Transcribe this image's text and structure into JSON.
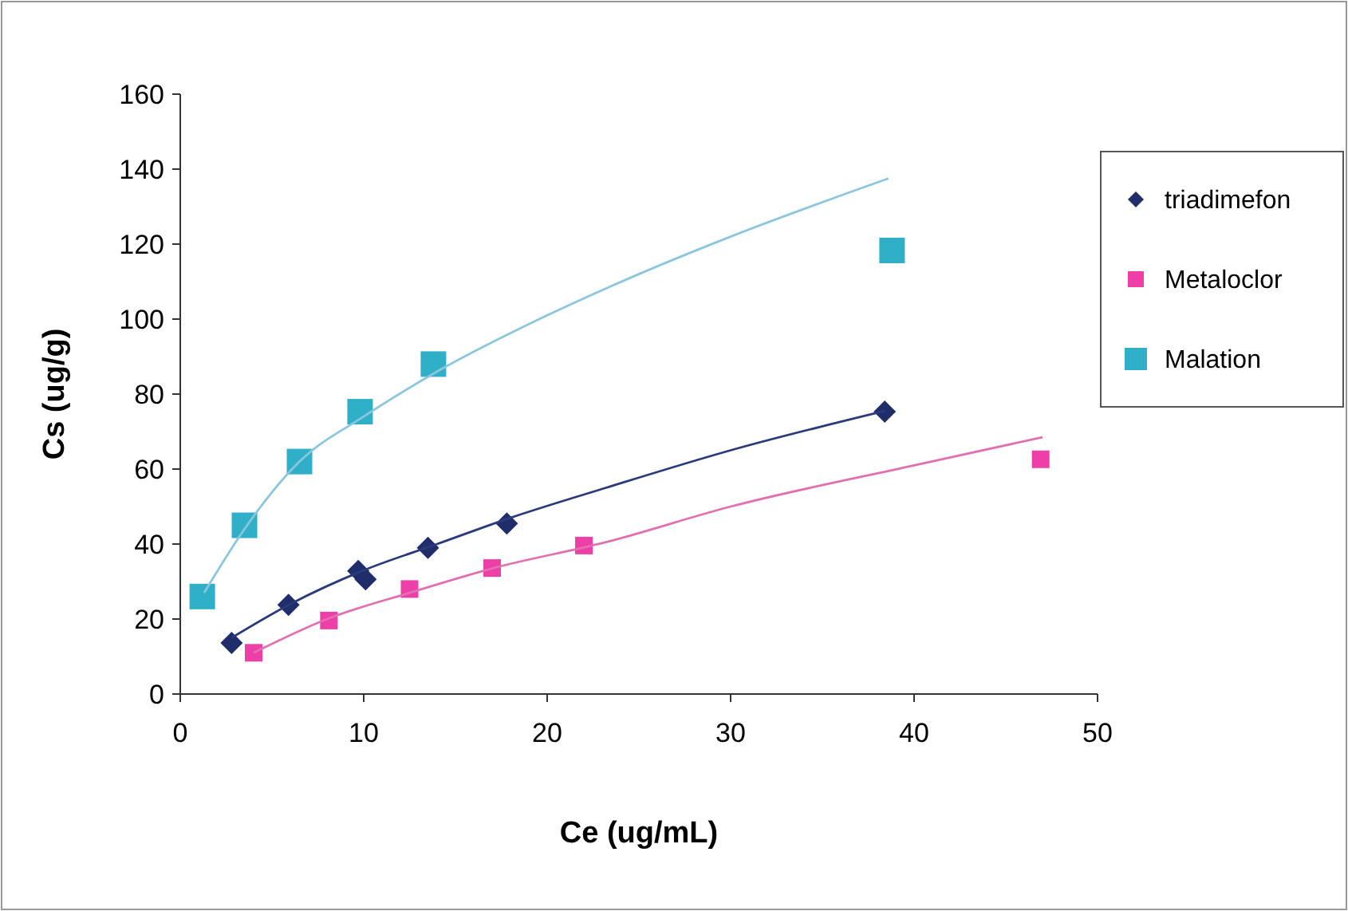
{
  "chart_data": {
    "type": "scatter",
    "xlabel": "Ce (ug/mL)",
    "ylabel": "Cs (ug/g)",
    "xlim": [
      0,
      50
    ],
    "xticks": [
      0,
      10,
      20,
      30,
      40,
      50
    ],
    "ylim": [
      0,
      160
    ],
    "yticks": [
      0,
      20,
      40,
      60,
      80,
      100,
      120,
      140,
      160
    ],
    "grid": false,
    "legend": "right",
    "series": [
      {
        "name": "triadimefon",
        "color": "#1f2d6b",
        "marker": "diamond",
        "x": [
          2.8,
          5.9,
          9.7,
          10.1,
          13.5,
          17.8,
          38.4
        ],
        "values": [
          13.6,
          23.8,
          32.8,
          30.6,
          39,
          45.5,
          75.3
        ]
      },
      {
        "name": "Metaloclor",
        "color": "#ee3fa8",
        "marker": "square",
        "x": [
          4,
          8.1,
          12.5,
          17,
          22,
          46.9
        ],
        "values": [
          11,
          19.6,
          28,
          33.6,
          39.6,
          62.6
        ]
      },
      {
        "name": "Malation",
        "color": "#2fb0c8",
        "marker": "square",
        "x": [
          1.2,
          3.5,
          6.5,
          9.8,
          13.8,
          38.8
        ],
        "values": [
          26,
          45,
          62,
          75.3,
          88,
          118.3
        ]
      },
      {
        "color": "#2a3a7a",
        "type": "line",
        "marker": "none",
        "x": [
          2.8,
          6,
          10,
          14,
          18,
          23.2,
          30,
          38.4
        ],
        "values": [
          15,
          24,
          33,
          40,
          47,
          55,
          65,
          75.5
        ]
      },
      {
        "color": "#e070b0",
        "type": "line",
        "marker": "none",
        "x": [
          4,
          8,
          12.5,
          17,
          23.2,
          30,
          40,
          47
        ],
        "values": [
          11,
          20,
          27,
          33.5,
          40.5,
          50,
          61,
          68.5
        ]
      },
      {
        "color": "#8cc6dc",
        "type": "line",
        "marker": "none",
        "x": [
          1.3,
          3.5,
          6.5,
          10,
          14,
          20,
          25,
          30,
          38.6
        ],
        "values": [
          27,
          44,
          62,
          74,
          86,
          101,
          112,
          122,
          137.5
        ]
      }
    ]
  }
}
